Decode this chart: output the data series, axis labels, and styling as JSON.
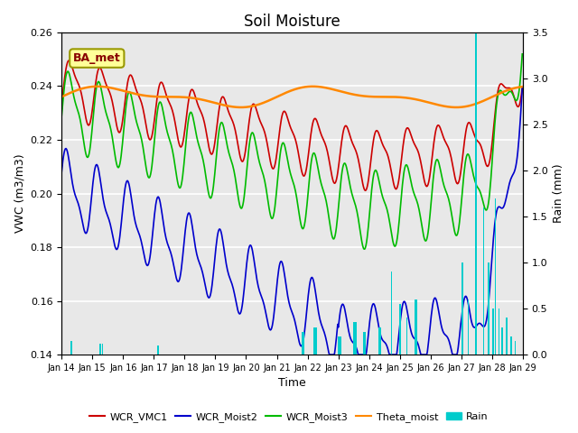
{
  "title": "Soil Moisture",
  "xlabel": "Time",
  "ylabel_left": "VWC (m3/m3)",
  "ylabel_right": "Rain (mm)",
  "ylim_left": [
    0.14,
    0.26
  ],
  "ylim_right": [
    0.0,
    3.5
  ],
  "yticks_left": [
    0.14,
    0.16,
    0.18,
    0.2,
    0.22,
    0.24,
    0.26
  ],
  "yticks_right": [
    0.0,
    0.5,
    1.0,
    1.5,
    2.0,
    2.5,
    3.0,
    3.5
  ],
  "xtick_labels": [
    "Jan 14",
    "Jan 15",
    "Jan 16",
    "Jan 17",
    "Jan 18",
    "Jan 19",
    "Jan 20",
    "Jan 21",
    "Jan 22",
    "Jan 23",
    "Jan 24",
    "Jan 25",
    "Jan 26",
    "Jan 27",
    "Jan 28",
    "Jan 29"
  ],
  "legend_labels": [
    "WCR_VMC1",
    "WCR_Moist2",
    "WCR_Moist3",
    "Theta_moist",
    "Rain"
  ],
  "line_colors": {
    "WCR_VMC1": "#cc0000",
    "WCR_Moist2": "#0000cc",
    "WCR_Moist3": "#00bb00",
    "Theta_moist": "#ff8800"
  },
  "rain_color": "#00cccc",
  "background_color": "#e8e8e8",
  "grid_color": "#ffffff",
  "label_box_text": "BA_met",
  "label_box_facecolor": "#ffff99",
  "label_box_edgecolor": "#999900"
}
